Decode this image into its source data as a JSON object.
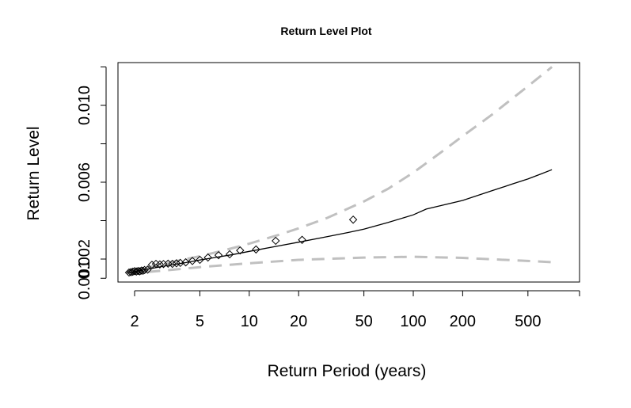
{
  "chart_data": {
    "type": "line",
    "title": "Return Level Plot",
    "xlabel": "Return Period (years)",
    "ylabel": "Return Level",
    "x_scale": "log",
    "xlim": [
      1.8,
      800
    ],
    "ylim": [
      0.001,
      0.0122
    ],
    "x_ticks": [
      {
        "value": 2,
        "label": "2"
      },
      {
        "value": 5,
        "label": "5"
      },
      {
        "value": 10,
        "label": "10"
      },
      {
        "value": 20,
        "label": "20"
      },
      {
        "value": 50,
        "label": "50"
      },
      {
        "value": 100,
        "label": "100"
      },
      {
        "value": 200,
        "label": "200"
      },
      {
        "value": 500,
        "label": "500"
      }
    ],
    "y_ticks": [
      {
        "value": 0.001,
        "label": "0.001",
        "show_label": false
      },
      {
        "value": 0.002,
        "label": "0.002",
        "show_label": true
      },
      {
        "value": 0.004,
        "label": "0.004",
        "show_label": false
      },
      {
        "value": 0.006,
        "label": "0.006",
        "show_label": true
      },
      {
        "value": 0.008,
        "label": "0.008",
        "show_label": false
      },
      {
        "value": 0.01,
        "label": "0.010",
        "show_label": true
      },
      {
        "value": 0.012,
        "label": "0.012",
        "show_label": false
      }
    ],
    "y_axis_bottom_label": "0.001",
    "grid": false,
    "legend": "none",
    "colors": {
      "fit": "#000000",
      "ci": "#c0c0c0",
      "points": "#000000"
    },
    "series": [
      {
        "style": "solid",
        "x": [
          1.8,
          2,
          2.5,
          3,
          4,
          5,
          6,
          8,
          10,
          15,
          20,
          30,
          40,
          50,
          70,
          100,
          120,
          150,
          200,
          300,
          400,
          500,
          600,
          700
        ],
        "y": [
          0.00128,
          0.00135,
          0.0015,
          0.00163,
          0.0018,
          0.00195,
          0.00206,
          0.00224,
          0.0024,
          0.00268,
          0.00288,
          0.00317,
          0.00338,
          0.00356,
          0.0039,
          0.0043,
          0.0046,
          0.0048,
          0.00505,
          0.00555,
          0.0059,
          0.00617,
          0.00643,
          0.00665
        ]
      },
      {
        "style": "dashed",
        "x": [
          1.8,
          2,
          3,
          4,
          5,
          7,
          10,
          15,
          20,
          30,
          50,
          70,
          100,
          150,
          200,
          300,
          500,
          700
        ],
        "y": [
          0.00132,
          0.00142,
          0.00175,
          0.00198,
          0.00215,
          0.00245,
          0.0028,
          0.00325,
          0.0036,
          0.00415,
          0.005,
          0.00565,
          0.0065,
          0.0076,
          0.0084,
          0.0095,
          0.011,
          0.012
        ]
      },
      {
        "style": "dashed",
        "x": [
          1.8,
          2,
          3,
          5,
          10,
          20,
          50,
          100,
          200,
          500,
          700
        ],
        "y": [
          0.00124,
          0.00128,
          0.0014,
          0.00158,
          0.00178,
          0.00196,
          0.00208,
          0.00212,
          0.00206,
          0.0019,
          0.00184
        ]
      }
    ],
    "points": {
      "x": [
        1.85,
        1.9,
        1.95,
        2.0,
        2.05,
        2.1,
        2.15,
        2.2,
        2.25,
        2.3,
        2.4,
        2.55,
        2.7,
        2.85,
        3.0,
        3.2,
        3.4,
        3.6,
        3.8,
        4.1,
        4.5,
        5.0,
        5.6,
        6.5,
        7.6,
        8.8,
        11.0,
        14.5,
        21.0,
        43.0
      ],
      "y": [
        0.0013,
        0.00132,
        0.00134,
        0.00137,
        0.00135,
        0.00138,
        0.00136,
        0.0014,
        0.00139,
        0.00143,
        0.00145,
        0.0017,
        0.00175,
        0.00172,
        0.00174,
        0.00176,
        0.00175,
        0.00178,
        0.0018,
        0.00183,
        0.0019,
        0.00196,
        0.00208,
        0.0022,
        0.00225,
        0.00245,
        0.0025,
        0.00295,
        0.003,
        0.00405
      ]
    }
  }
}
